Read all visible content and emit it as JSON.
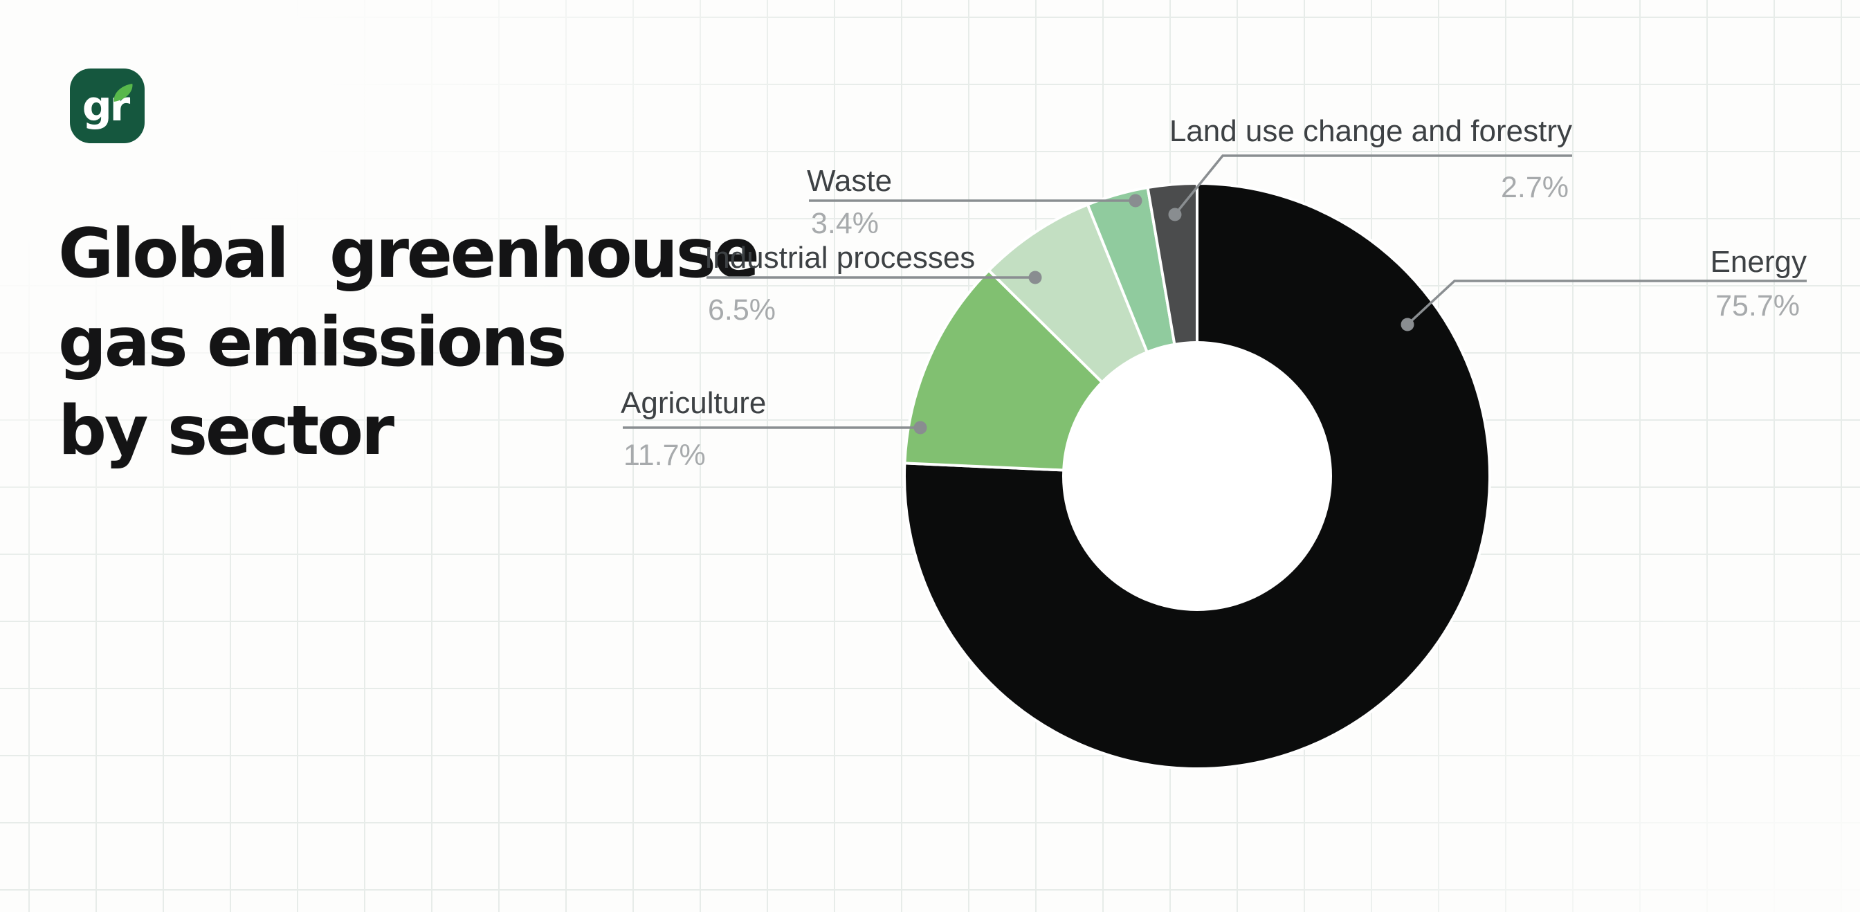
{
  "theme": {
    "background": "#fdfdfc",
    "grid_color": "#e7ece9",
    "label_color": "#3d4144",
    "pct_color": "#a7aaac",
    "leader_line_color": "#8a8e91",
    "leader_dot_color": "#898d90",
    "hole_color": "#ffffff"
  },
  "logo": {
    "text": "gr",
    "bg_color": "#15573e",
    "leaf_color": "#58b84b",
    "text_color": "#ffffff"
  },
  "title": {
    "lines": [
      "Global  greenhouse",
      "gas emissions",
      "by sector"
    ]
  },
  "chart_data": {
    "type": "pie",
    "subtype": "donut",
    "title": "Global greenhouse gas emissions by sector",
    "unit": "%",
    "start_angle_deg": 0,
    "direction": "clockwise",
    "legend_position": "callout-labels",
    "grid": true,
    "slices": [
      {
        "label": "Energy",
        "value": 75.7,
        "display": "75.7%",
        "color": "#0b0c0c"
      },
      {
        "label": "Agriculture",
        "value": 11.7,
        "display": "11.7%",
        "color": "#81c071"
      },
      {
        "label": "Industrial processes",
        "value": 6.5,
        "display": "6.5%",
        "color": "#c3dfc2"
      },
      {
        "label": "Waste",
        "value": 3.4,
        "display": "3.4%",
        "color": "#90cb9e"
      },
      {
        "label": "Land use change and forestry",
        "value": 2.7,
        "display": "2.7%",
        "color": "#4b4c4d"
      }
    ]
  }
}
